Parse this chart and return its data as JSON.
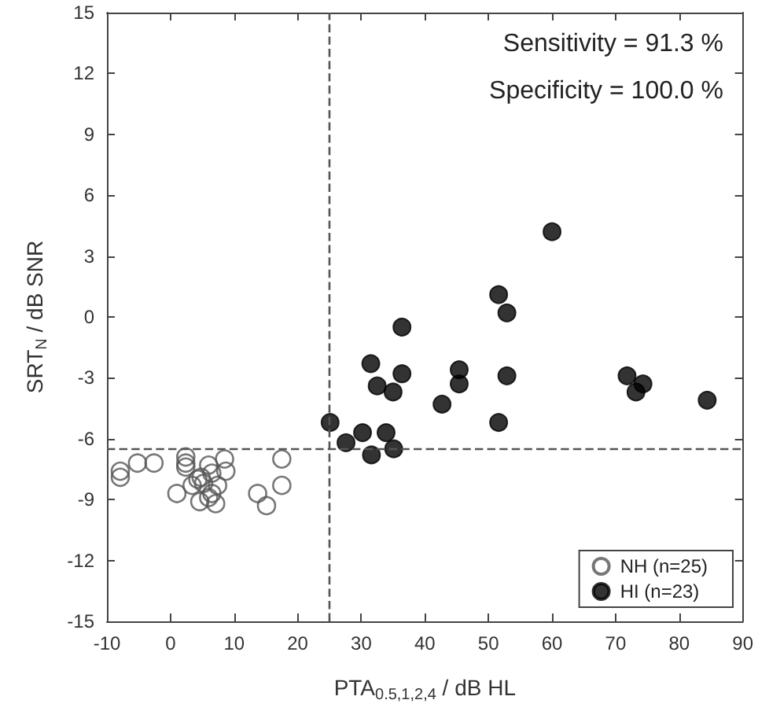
{
  "chart_data": {
    "type": "scatter",
    "xlabel": "PTA$_{0.5,1,2,4}$ / dB HL",
    "ylabel": "SRT$_{N}$ / dB SNR",
    "xlim": [
      -10,
      90
    ],
    "xticks": [
      -10,
      0,
      10,
      20,
      30,
      40,
      50,
      60,
      70,
      80,
      90
    ],
    "ylim": [
      -15,
      15
    ],
    "yticks": [
      -15,
      -12,
      -9,
      -6,
      -3,
      0,
      3,
      6,
      9,
      12,
      15
    ],
    "grid": false,
    "legend": "bottom right",
    "marker": "circle",
    "annotations": [
      "Sensitivity = 91.3 %",
      "Specificity = 100.0 %"
    ],
    "ref_lines": [
      {
        "axis": "x",
        "value": 25,
        "color": "#555555",
        "line_style": "dashed"
      },
      {
        "axis": "y",
        "value": -6.5,
        "color": "#555555",
        "line_style": "dashed"
      }
    ],
    "series": [
      {
        "name": "NH (n=25)",
        "color": "#555555",
        "x": [
          -7.9,
          -7.9,
          -5.2,
          -2.6,
          2.4,
          2.4,
          2.4,
          1.0,
          3.4,
          4.8,
          4.6,
          6.0,
          6.5,
          5.2,
          7.4,
          6.5,
          7.1,
          8.5,
          8.7,
          13.7,
          15.1,
          17.5,
          17.5,
          4.3,
          6.0
        ],
        "values": [
          -7.6,
          -7.9,
          -7.2,
          -7.2,
          -6.9,
          -7.2,
          -7.4,
          -8.7,
          -8.3,
          -7.9,
          -9.1,
          -7.3,
          -7.7,
          -8.2,
          -8.3,
          -8.7,
          -9.2,
          -7.0,
          -7.6,
          -8.7,
          -9.3,
          -7.0,
          -8.3,
          -8.0,
          -8.9
        ]
      },
      {
        "name": "HI (n=23)",
        "color": "#000000",
        "x": [
          25.1,
          27.6,
          30.2,
          31.6,
          33.9,
          35.1,
          31.5,
          32.5,
          35.0,
          36.4,
          36.4,
          42.7,
          45.4,
          45.4,
          51.6,
          52.9,
          52.9,
          51.6,
          71.8,
          74.3,
          73.2,
          84.4,
          60.0
        ],
        "values": [
          -5.2,
          -6.2,
          -5.7,
          -6.8,
          -5.7,
          -6.5,
          -2.3,
          -3.4,
          -3.7,
          -2.8,
          -0.5,
          -4.3,
          -2.6,
          -3.3,
          1.1,
          0.2,
          -2.9,
          -5.2,
          -2.9,
          -3.3,
          -3.7,
          -4.1,
          4.2
        ]
      }
    ]
  }
}
